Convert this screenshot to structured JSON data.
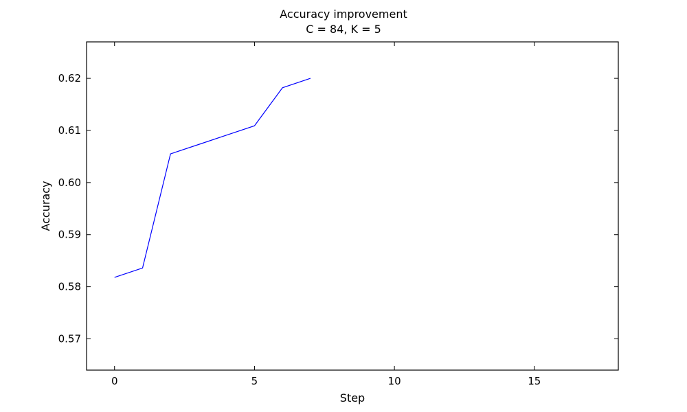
{
  "chart_data": {
    "type": "line",
    "title": "Accuracy improvement",
    "subtitle": "C = 84, K = 5",
    "xlabel": "Step",
    "ylabel": "Accuracy",
    "xlim": [
      -1,
      18
    ],
    "ylim": [
      0.564,
      0.627
    ],
    "xticks": [
      0,
      5,
      10,
      15
    ],
    "xtick_labels": [
      "0",
      "5",
      "10",
      "15"
    ],
    "yticks": [
      0.57,
      0.58,
      0.59,
      0.6,
      0.61,
      0.62
    ],
    "ytick_labels": [
      "0.57",
      "0.58",
      "0.59",
      "0.60",
      "0.61",
      "0.62"
    ],
    "grid": false,
    "series": [
      {
        "color": "#0000ff",
        "x": [
          0,
          1,
          2,
          3,
          4,
          5,
          6,
          7
        ],
        "y": [
          0.5818,
          0.5836,
          0.6055,
          0.6073,
          0.6091,
          0.6109,
          0.6182,
          0.62
        ]
      }
    ]
  }
}
